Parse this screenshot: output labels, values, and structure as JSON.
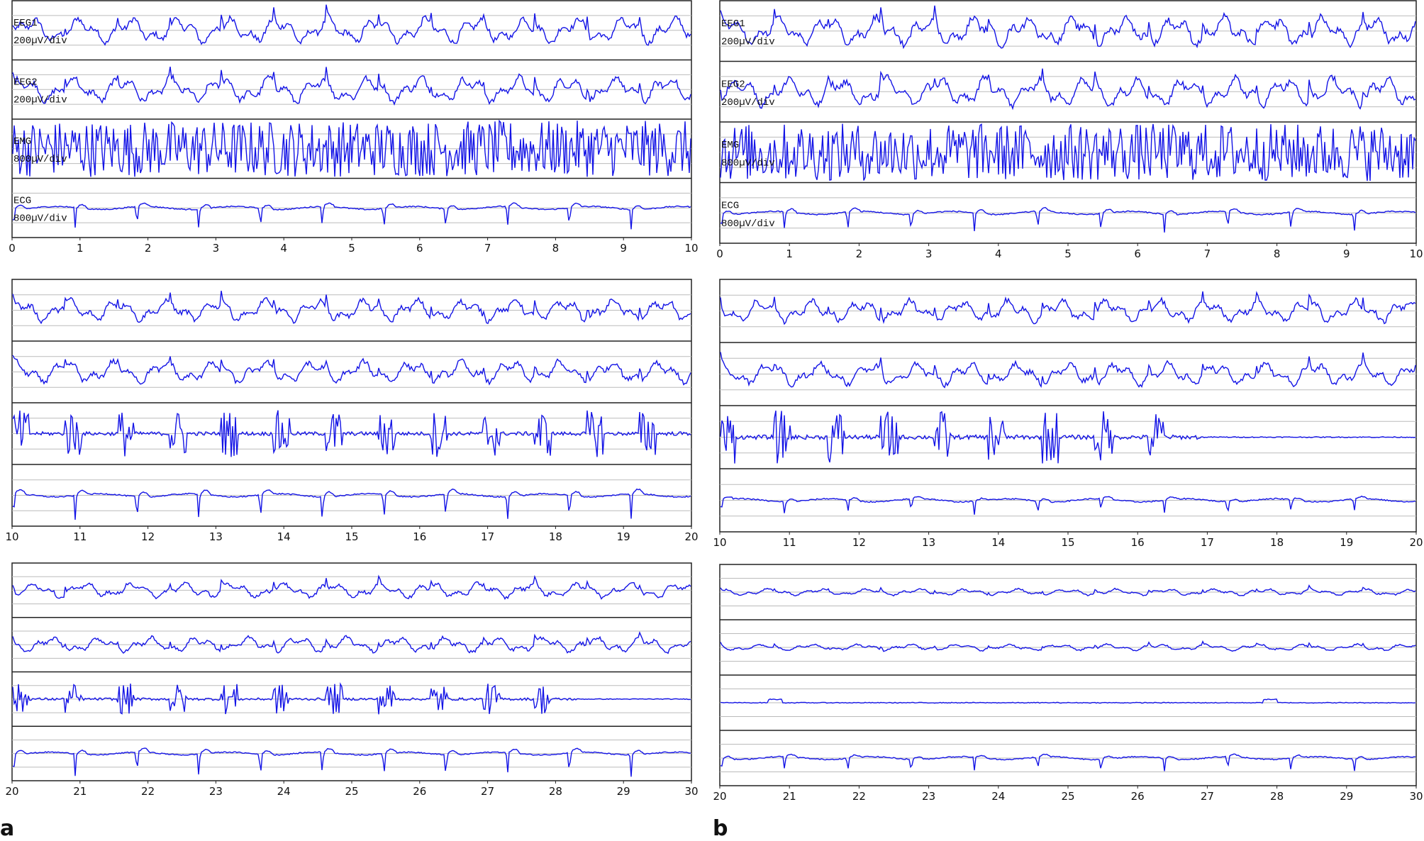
{
  "panels": [
    {
      "label": "a",
      "channels": [
        {
          "name": "EEG1",
          "scale": "200µV/div"
        },
        {
          "name": "EEG2",
          "scale": "200µV/div"
        },
        {
          "name": "EMG",
          "scale": "800µV/div"
        },
        {
          "name": "ECG",
          "scale": "800µV/div"
        }
      ],
      "rows": [
        {
          "xlim": [
            0,
            10
          ],
          "xticks": [
            0,
            1,
            2,
            3,
            4,
            5,
            6,
            7,
            8,
            9,
            10
          ]
        },
        {
          "xlim": [
            10,
            20
          ],
          "xticks": [
            10,
            11,
            12,
            13,
            14,
            15,
            16,
            17,
            18,
            19,
            20
          ]
        },
        {
          "xlim": [
            20,
            30
          ],
          "xticks": [
            20,
            21,
            22,
            23,
            24,
            25,
            26,
            27,
            28,
            29,
            30
          ]
        }
      ]
    },
    {
      "label": "b",
      "channels": [
        {
          "name": "EEG1",
          "scale": "200µV/div"
        },
        {
          "name": "EEG2",
          "scale": "200µV/div"
        },
        {
          "name": "EMG",
          "scale": "800µV/div"
        },
        {
          "name": "ECG",
          "scale": "800µV/div"
        }
      ],
      "rows": [
        {
          "xlim": [
            0,
            10
          ],
          "xticks": [
            0,
            1,
            2,
            3,
            4,
            5,
            6,
            7,
            8,
            9,
            10
          ]
        },
        {
          "xlim": [
            10,
            20
          ],
          "xticks": [
            10,
            11,
            12,
            13,
            14,
            15,
            16,
            17,
            18,
            19,
            20
          ]
        },
        {
          "xlim": [
            20,
            30
          ],
          "xticks": [
            20,
            21,
            22,
            23,
            24,
            25,
            26,
            27,
            28,
            29,
            30
          ]
        }
      ]
    }
  ]
}
